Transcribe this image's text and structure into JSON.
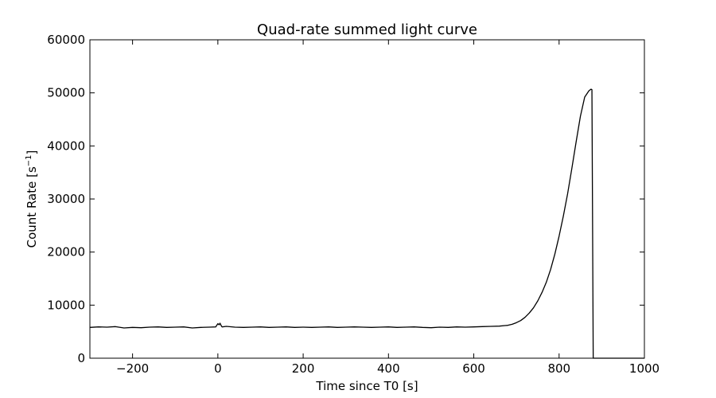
{
  "chart_data": {
    "type": "line",
    "title": "Quad-rate summed light curve",
    "xlabel": "Time since T0 [s]",
    "ylabel_main": "Count Rate [s",
    "ylabel_sup": "−1",
    "ylabel_end": "]",
    "xlim": [
      -300,
      1000
    ],
    "ylim": [
      0,
      60000
    ],
    "x_ticks": [
      -200,
      0,
      200,
      400,
      600,
      800,
      1000
    ],
    "x_tick_labels": [
      "−200",
      "0",
      "200",
      "400",
      "600",
      "800",
      "1000"
    ],
    "y_ticks": [
      0,
      10000,
      20000,
      30000,
      40000,
      50000,
      60000
    ],
    "y_tick_labels": [
      "0",
      "10000",
      "20000",
      "30000",
      "40000",
      "50000",
      "60000"
    ],
    "grid": false,
    "line_color": "#000000",
    "series": [
      {
        "x": [
          -300,
          -280,
          -260,
          -240,
          -220,
          -200,
          -180,
          -160,
          -140,
          -120,
          -100,
          -80,
          -60,
          -40,
          -20,
          -5,
          0,
          3,
          5,
          8,
          10,
          20,
          40,
          60,
          80,
          100,
          120,
          140,
          160,
          180,
          200,
          220,
          240,
          260,
          280,
          300,
          320,
          340,
          360,
          380,
          400,
          420,
          440,
          460,
          480,
          500,
          520,
          540,
          560,
          580,
          600,
          620,
          640,
          660,
          680,
          690,
          700,
          710,
          720,
          730,
          740,
          750,
          760,
          770,
          780,
          790,
          800,
          810,
          820,
          830,
          840,
          850,
          860,
          870,
          875,
          877,
          880,
          900,
          950,
          1000
        ],
        "y": [
          5800,
          5900,
          5850,
          5950,
          5700,
          5800,
          5750,
          5850,
          5900,
          5800,
          5850,
          5900,
          5700,
          5800,
          5850,
          5900,
          6500,
          6300,
          6600,
          6100,
          5900,
          6000,
          5850,
          5800,
          5850,
          5900,
          5800,
          5850,
          5900,
          5800,
          5850,
          5800,
          5850,
          5900,
          5800,
          5850,
          5900,
          5850,
          5800,
          5850,
          5900,
          5800,
          5850,
          5900,
          5800,
          5750,
          5850,
          5800,
          5900,
          5850,
          5900,
          5950,
          6000,
          6050,
          6200,
          6400,
          6700,
          7100,
          7700,
          8500,
          9500,
          10800,
          12400,
          14300,
          16700,
          19600,
          23000,
          26800,
          31000,
          35800,
          40800,
          45600,
          49200,
          50400,
          50700,
          50600,
          0,
          0,
          0,
          0
        ]
      }
    ]
  }
}
